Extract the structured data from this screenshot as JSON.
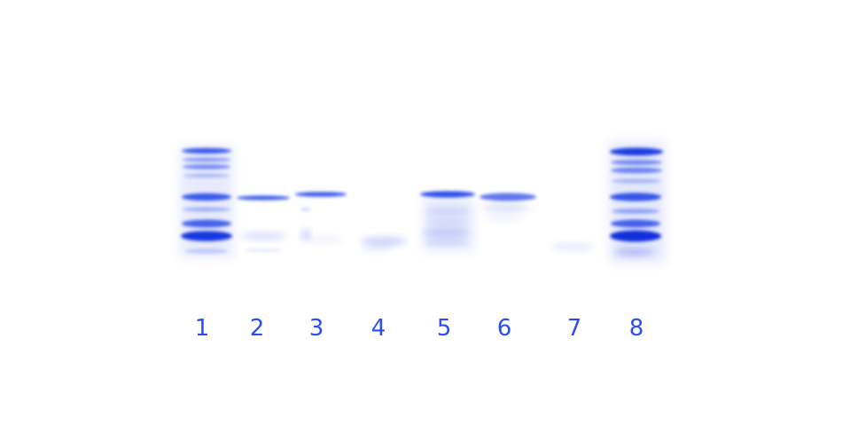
{
  "colors": {
    "background": "#ffffff",
    "stain": "#1a3fe6",
    "label": "#2a4ff0"
  },
  "lanes": [
    {
      "label": "1",
      "type": "marker"
    },
    {
      "label": "2",
      "type": "sample"
    },
    {
      "label": "3",
      "type": "sample"
    },
    {
      "label": "4",
      "type": "sample"
    },
    {
      "label": "5",
      "type": "sample"
    },
    {
      "label": "6",
      "type": "sample"
    },
    {
      "label": "7",
      "type": "sample"
    },
    {
      "label": "8",
      "type": "marker"
    }
  ]
}
